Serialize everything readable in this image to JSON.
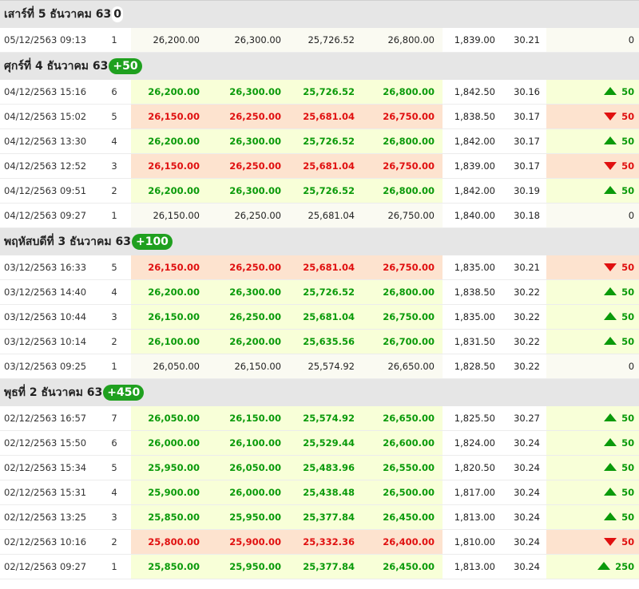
{
  "colors": {
    "up": "#0a9a0a",
    "down": "#e01010",
    "badge": "#1fa01f"
  },
  "days": [
    {
      "label": "เสาร์ที่ 5 ธันวาคม 63",
      "change": "0",
      "trend": "zero",
      "rows": [
        {
          "time": "05/12/2563 09:13",
          "round": "1",
          "p1": "26,200.00",
          "p2": "26,300.00",
          "p3": "25,726.52",
          "p4": "26,800.00",
          "spot": "1,839.00",
          "fx": "30.21",
          "change": "0",
          "dir": "neutral"
        }
      ]
    },
    {
      "label": "ศุกร์ที่ 4 ธันวาคม 63",
      "change": "+50",
      "trend": "up",
      "rows": [
        {
          "time": "04/12/2563 15:16",
          "round": "6",
          "p1": "26,200.00",
          "p2": "26,300.00",
          "p3": "25,726.52",
          "p4": "26,800.00",
          "spot": "1,842.50",
          "fx": "30.16",
          "change": "50",
          "dir": "up"
        },
        {
          "time": "04/12/2563 15:02",
          "round": "5",
          "p1": "26,150.00",
          "p2": "26,250.00",
          "p3": "25,681.04",
          "p4": "26,750.00",
          "spot": "1,838.50",
          "fx": "30.17",
          "change": "50",
          "dir": "down"
        },
        {
          "time": "04/12/2563 13:30",
          "round": "4",
          "p1": "26,200.00",
          "p2": "26,300.00",
          "p3": "25,726.52",
          "p4": "26,800.00",
          "spot": "1,842.00",
          "fx": "30.17",
          "change": "50",
          "dir": "up"
        },
        {
          "time": "04/12/2563 12:52",
          "round": "3",
          "p1": "26,150.00",
          "p2": "26,250.00",
          "p3": "25,681.04",
          "p4": "26,750.00",
          "spot": "1,839.00",
          "fx": "30.17",
          "change": "50",
          "dir": "down"
        },
        {
          "time": "04/12/2563 09:51",
          "round": "2",
          "p1": "26,200.00",
          "p2": "26,300.00",
          "p3": "25,726.52",
          "p4": "26,800.00",
          "spot": "1,842.00",
          "fx": "30.19",
          "change": "50",
          "dir": "up"
        },
        {
          "time": "04/12/2563 09:27",
          "round": "1",
          "p1": "26,150.00",
          "p2": "26,250.00",
          "p3": "25,681.04",
          "p4": "26,750.00",
          "spot": "1,840.00",
          "fx": "30.18",
          "change": "0",
          "dir": "neutral"
        }
      ]
    },
    {
      "label": "พฤหัสบดีที่ 3 ธันวาคม 63",
      "change": "+100",
      "trend": "up",
      "rows": [
        {
          "time": "03/12/2563 16:33",
          "round": "5",
          "p1": "26,150.00",
          "p2": "26,250.00",
          "p3": "25,681.04",
          "p4": "26,750.00",
          "spot": "1,835.00",
          "fx": "30.21",
          "change": "50",
          "dir": "down"
        },
        {
          "time": "03/12/2563 14:40",
          "round": "4",
          "p1": "26,200.00",
          "p2": "26,300.00",
          "p3": "25,726.52",
          "p4": "26,800.00",
          "spot": "1,838.50",
          "fx": "30.22",
          "change": "50",
          "dir": "up"
        },
        {
          "time": "03/12/2563 10:44",
          "round": "3",
          "p1": "26,150.00",
          "p2": "26,250.00",
          "p3": "25,681.04",
          "p4": "26,750.00",
          "spot": "1,835.00",
          "fx": "30.22",
          "change": "50",
          "dir": "up"
        },
        {
          "time": "03/12/2563 10:14",
          "round": "2",
          "p1": "26,100.00",
          "p2": "26,200.00",
          "p3": "25,635.56",
          "p4": "26,700.00",
          "spot": "1,831.50",
          "fx": "30.22",
          "change": "50",
          "dir": "up"
        },
        {
          "time": "03/12/2563 09:25",
          "round": "1",
          "p1": "26,050.00",
          "p2": "26,150.00",
          "p3": "25,574.92",
          "p4": "26,650.00",
          "spot": "1,828.50",
          "fx": "30.22",
          "change": "0",
          "dir": "neutral"
        }
      ]
    },
    {
      "label": "พุธที่ 2 ธันวาคม 63",
      "change": "+450",
      "trend": "up",
      "rows": [
        {
          "time": "02/12/2563 16:57",
          "round": "7",
          "p1": "26,050.00",
          "p2": "26,150.00",
          "p3": "25,574.92",
          "p4": "26,650.00",
          "spot": "1,825.50",
          "fx": "30.27",
          "change": "50",
          "dir": "up"
        },
        {
          "time": "02/12/2563 15:50",
          "round": "6",
          "p1": "26,000.00",
          "p2": "26,100.00",
          "p3": "25,529.44",
          "p4": "26,600.00",
          "spot": "1,824.00",
          "fx": "30.24",
          "change": "50",
          "dir": "up"
        },
        {
          "time": "02/12/2563 15:34",
          "round": "5",
          "p1": "25,950.00",
          "p2": "26,050.00",
          "p3": "25,483.96",
          "p4": "26,550.00",
          "spot": "1,820.50",
          "fx": "30.24",
          "change": "50",
          "dir": "up"
        },
        {
          "time": "02/12/2563 15:31",
          "round": "4",
          "p1": "25,900.00",
          "p2": "26,000.00",
          "p3": "25,438.48",
          "p4": "26,500.00",
          "spot": "1,817.00",
          "fx": "30.24",
          "change": "50",
          "dir": "up"
        },
        {
          "time": "02/12/2563 13:25",
          "round": "3",
          "p1": "25,850.00",
          "p2": "25,950.00",
          "p3": "25,377.84",
          "p4": "26,450.00",
          "spot": "1,813.00",
          "fx": "30.24",
          "change": "50",
          "dir": "up"
        },
        {
          "time": "02/12/2563 10:16",
          "round": "2",
          "p1": "25,800.00",
          "p2": "25,900.00",
          "p3": "25,332.36",
          "p4": "26,400.00",
          "spot": "1,810.00",
          "fx": "30.24",
          "change": "50",
          "dir": "down"
        },
        {
          "time": "02/12/2563 09:27",
          "round": "1",
          "p1": "25,850.00",
          "p2": "25,950.00",
          "p3": "25,377.84",
          "p4": "26,450.00",
          "spot": "1,813.00",
          "fx": "30.24",
          "change": "250",
          "dir": "up"
        }
      ]
    }
  ]
}
